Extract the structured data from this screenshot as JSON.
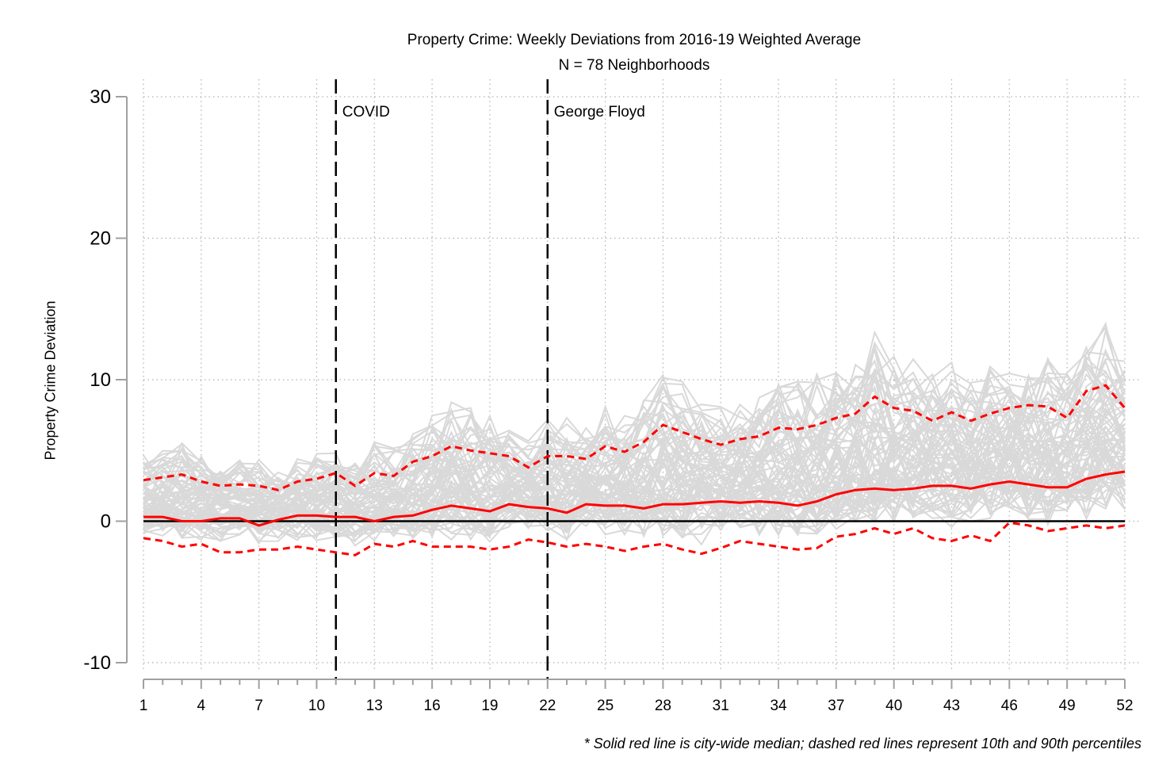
{
  "chart_data": {
    "type": "line",
    "title": "Property Crime: Weekly Deviations from 2016-19 Weighted Average",
    "subtitle": "N = 78 Neighborhoods",
    "xlabel": "",
    "ylabel": "Property Crime Deviation",
    "xlim": [
      1,
      52
    ],
    "ylim": [
      -10,
      30
    ],
    "xticks": [
      1,
      4,
      7,
      10,
      13,
      16,
      19,
      22,
      25,
      28,
      31,
      34,
      37,
      40,
      43,
      46,
      49,
      52
    ],
    "yticks": [
      -10,
      0,
      10,
      20,
      30
    ],
    "grid": "dotted",
    "footnote": "* Solid red line is city-wide median; dashed red lines represent 10th and 90th percentiles",
    "events": [
      {
        "x": 11,
        "label": "COVID"
      },
      {
        "x": 22,
        "label": "George Floyd"
      }
    ],
    "reference_line": {
      "y": 0,
      "color": "#000000"
    },
    "neighborhood_count": 78,
    "neighborhood_series_color": "#d9d9d9",
    "series": [
      {
        "role": "median",
        "style": "solid",
        "color": "#ff0000",
        "values": [
          0.3,
          0.3,
          0.0,
          0.0,
          0.2,
          0.2,
          -0.3,
          0.1,
          0.4,
          0.4,
          0.3,
          0.3,
          0.0,
          0.3,
          0.4,
          0.8,
          1.1,
          0.9,
          0.7,
          1.2,
          1.0,
          0.9,
          0.6,
          1.2,
          1.1,
          1.1,
          0.9,
          1.2,
          1.2,
          1.3,
          1.4,
          1.3,
          1.4,
          1.3,
          1.1,
          1.4,
          1.9,
          2.2,
          2.3,
          2.2,
          2.3,
          2.5,
          2.5,
          2.3,
          2.6,
          2.8,
          2.6,
          2.4,
          2.4,
          3.0,
          3.3,
          3.5
        ]
      },
      {
        "role": "p90",
        "style": "dashed",
        "color": "#ff0000",
        "values": [
          2.9,
          3.1,
          3.3,
          2.8,
          2.5,
          2.6,
          2.5,
          2.2,
          2.8,
          3.0,
          3.4,
          2.5,
          3.4,
          3.2,
          4.2,
          4.6,
          5.3,
          5.0,
          4.8,
          4.6,
          3.8,
          4.6,
          4.6,
          4.4,
          5.3,
          4.9,
          5.6,
          6.8,
          6.3,
          5.8,
          5.4,
          5.8,
          6.0,
          6.6,
          6.5,
          6.8,
          7.3,
          7.6,
          8.8,
          8.0,
          7.8,
          7.1,
          7.7,
          7.1,
          7.6,
          8.0,
          8.2,
          8.1,
          7.3,
          9.2,
          9.6,
          8.0
        ]
      },
      {
        "role": "p10",
        "style": "dashed",
        "color": "#ff0000",
        "values": [
          -1.2,
          -1.4,
          -1.8,
          -1.6,
          -2.2,
          -2.2,
          -2.0,
          -2.0,
          -1.8,
          -2.0,
          -2.2,
          -2.4,
          -1.6,
          -1.8,
          -1.4,
          -1.8,
          -1.8,
          -1.8,
          -2.0,
          -1.8,
          -1.3,
          -1.5,
          -1.8,
          -1.6,
          -1.8,
          -2.1,
          -1.8,
          -1.6,
          -2.0,
          -2.3,
          -1.9,
          -1.4,
          -1.6,
          -1.8,
          -2.0,
          -1.9,
          -1.1,
          -0.9,
          -0.5,
          -0.9,
          -0.5,
          -1.2,
          -1.4,
          -1.0,
          -1.4,
          -0.1,
          -0.3,
          -0.7,
          -0.5,
          -0.3,
          -0.5,
          -0.3
        ]
      }
    ]
  }
}
